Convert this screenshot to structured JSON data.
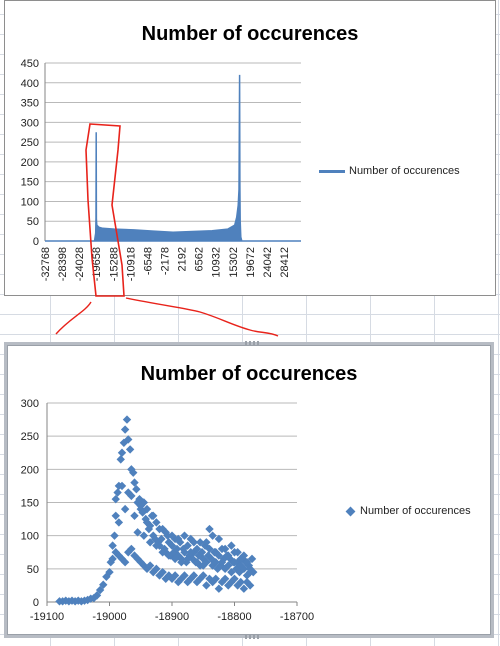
{
  "chart_data": [
    {
      "type": "area",
      "title": "Number of occurences",
      "legend": "Number of occurences",
      "legend_position": "right",
      "ylim": [
        0,
        450
      ],
      "yticks": [
        0,
        50,
        100,
        150,
        200,
        250,
        300,
        350,
        400,
        450
      ],
      "xlim": [
        -32768,
        32767
      ],
      "xticks": [
        -32768,
        -28398,
        -24028,
        -19658,
        -15288,
        -10918,
        -6548,
        -2178,
        2192,
        6562,
        10932,
        15302,
        19672,
        24042,
        28412
      ],
      "series": [
        {
          "name": "Number of occurences",
          "x": [
            -32768,
            -21300,
            -20100,
            -19800,
            -19700,
            -19660,
            -19600,
            -19500,
            -19000,
            -18000,
            -15000,
            -10000,
            -5000,
            0,
            5000,
            10000,
            14000,
            15800,
            16300,
            16700,
            16900,
            17050,
            17120,
            17200,
            17350,
            17600,
            18000,
            32767
          ],
          "y": [
            0,
            0,
            0,
            20,
            60,
            275,
            55,
            40,
            35,
            32,
            30,
            28,
            25,
            22,
            24,
            26,
            30,
            40,
            60,
            90,
            130,
            420,
            140,
            50,
            10,
            0,
            0,
            0
          ]
        }
      ],
      "grid": "horizontal",
      "color": "#4f81bd"
    },
    {
      "type": "scatter",
      "title": "Number of occurences",
      "legend": "Number of occurences",
      "legend_position": "right",
      "xlim": [
        -19100,
        -18700
      ],
      "ylim": [
        0,
        300
      ],
      "xticks": [
        -19100,
        -19000,
        -18900,
        -18800,
        -18700
      ],
      "yticks": [
        0,
        50,
        100,
        150,
        200,
        250,
        300
      ],
      "grid": "horizontal",
      "color": "#4f81bd",
      "series": [
        {
          "name": "Number of occurences",
          "points": [
            [
              -19080,
              1
            ],
            [
              -19075,
              1
            ],
            [
              -19070,
              2
            ],
            [
              -19065,
              1
            ],
            [
              -19060,
              2
            ],
            [
              -19055,
              1
            ],
            [
              -19050,
              2
            ],
            [
              -19045,
              1
            ],
            [
              -19040,
              2
            ],
            [
              -19035,
              3
            ],
            [
              -19030,
              5
            ],
            [
              -19025,
              6
            ],
            [
              -19020,
              10
            ],
            [
              -19015,
              18
            ],
            [
              -19010,
              26
            ],
            [
              -19005,
              38
            ],
            [
              -19000,
              45
            ],
            [
              -18998,
              60
            ],
            [
              -18995,
              85
            ],
            [
              -18992,
              100
            ],
            [
              -18990,
              130
            ],
            [
              -18987,
              165
            ],
            [
              -18985,
              175
            ],
            [
              -18982,
              215
            ],
            [
              -18980,
              225
            ],
            [
              -18977,
              240
            ],
            [
              -18975,
              260
            ],
            [
              -18972,
              275
            ],
            [
              -18970,
              245
            ],
            [
              -18967,
              230
            ],
            [
              -18965,
              200
            ],
            [
              -18962,
              195
            ],
            [
              -18960,
              180
            ],
            [
              -18957,
              170
            ],
            [
              -18955,
              150
            ],
            [
              -18952,
              155
            ],
            [
              -18950,
              140
            ],
            [
              -18947,
              135
            ],
            [
              -18945,
              150
            ],
            [
              -18942,
              125
            ],
            [
              -18940,
              120
            ],
            [
              -18937,
              110
            ],
            [
              -18935,
              115
            ],
            [
              -18932,
              130
            ],
            [
              -18930,
              100
            ],
            [
              -18927,
              95
            ],
            [
              -18925,
              120
            ],
            [
              -18922,
              90
            ],
            [
              -18920,
              85
            ],
            [
              -18917,
              95
            ],
            [
              -18915,
              110
            ],
            [
              -18912,
              80
            ],
            [
              -18910,
              75
            ],
            [
              -18907,
              100
            ],
            [
              -18905,
              90
            ],
            [
              -18902,
              70
            ],
            [
              -18900,
              85
            ],
            [
              -18897,
              75
            ],
            [
              -18895,
              95
            ],
            [
              -18892,
              80
            ],
            [
              -18890,
              70
            ],
            [
              -18887,
              90
            ],
            [
              -18885,
              65
            ],
            [
              -18882,
              80
            ],
            [
              -18880,
              75
            ],
            [
              -18877,
              60
            ],
            [
              -18875,
              85
            ],
            [
              -18872,
              70
            ],
            [
              -18870,
              95
            ],
            [
              -18867,
              65
            ],
            [
              -18865,
              75
            ],
            [
              -18862,
              60
            ],
            [
              -18860,
              80
            ],
            [
              -18857,
              70
            ],
            [
              -18855,
              55
            ],
            [
              -18852,
              75
            ],
            [
              -18850,
              65
            ],
            [
              -18847,
              85
            ],
            [
              -18845,
              60
            ],
            [
              -18842,
              70
            ],
            [
              -18840,
              110
            ],
            [
              -18837,
              65
            ],
            [
              -18835,
              55
            ],
            [
              -18832,
              75
            ],
            [
              -18830,
              60
            ],
            [
              -18827,
              50
            ],
            [
              -18825,
              70
            ],
            [
              -18822,
              55
            ],
            [
              -18820,
              80
            ],
            [
              -18817,
              65
            ],
            [
              -18815,
              50
            ],
            [
              -18812,
              70
            ],
            [
              -18810,
              55
            ],
            [
              -18807,
              65
            ],
            [
              -18805,
              45
            ],
            [
              -18802,
              60
            ],
            [
              -18800,
              75
            ],
            [
              -18797,
              50
            ],
            [
              -18795,
              60
            ],
            [
              -18792,
              45
            ],
            [
              -18790,
              55
            ],
            [
              -18787,
              65
            ],
            [
              -18785,
              50
            ],
            [
              -18782,
              60
            ],
            [
              -18780,
              40
            ],
            [
              -18777,
              55
            ],
            [
              -18775,
              50
            ],
            [
              -18772,
              65
            ],
            [
              -18770,
              45
            ],
            [
              -18990,
              155
            ],
            [
              -18985,
              120
            ],
            [
              -18980,
              175
            ],
            [
              -18975,
              140
            ],
            [
              -18970,
              165
            ],
            [
              -18965,
              160
            ],
            [
              -18960,
              130
            ],
            [
              -18955,
              105
            ],
            [
              -18950,
              145
            ],
            [
              -18945,
              100
            ],
            [
              -18940,
              140
            ],
            [
              -18935,
              90
            ],
            [
              -18930,
              130
            ],
            [
              -18925,
              85
            ],
            [
              -18920,
              110
            ],
            [
              -18915,
              75
            ],
            [
              -18910,
              105
            ],
            [
              -18905,
              70
            ],
            [
              -18900,
              100
            ],
            [
              -18895,
              65
            ],
            [
              -18890,
              95
            ],
            [
              -18885,
              60
            ],
            [
              -18880,
              100
            ],
            [
              -18875,
              65
            ],
            [
              -18870,
              75
            ],
            [
              -18865,
              90
            ],
            [
              -18860,
              60
            ],
            [
              -18855,
              90
            ],
            [
              -18850,
              55
            ],
            [
              -18845,
              90
            ],
            [
              -18840,
              80
            ],
            [
              -18835,
              100
            ],
            [
              -18830,
              75
            ],
            [
              -18825,
              95
            ],
            [
              -18820,
              60
            ],
            [
              -18815,
              80
            ],
            [
              -18810,
              70
            ],
            [
              -18805,
              85
            ],
            [
              -18800,
              60
            ],
            [
              -18795,
              75
            ],
            [
              -18790,
              65
            ],
            [
              -18785,
              70
            ],
            [
              -18780,
              60
            ],
            [
              -18775,
              45
            ],
            [
              -18995,
              65
            ],
            [
              -18990,
              75
            ],
            [
              -18985,
              70
            ],
            [
              -18980,
              65
            ],
            [
              -18975,
              60
            ],
            [
              -18970,
              75
            ],
            [
              -18965,
              80
            ],
            [
              -18960,
              70
            ],
            [
              -18955,
              65
            ],
            [
              -18950,
              60
            ],
            [
              -18945,
              55
            ],
            [
              -18940,
              50
            ],
            [
              -18935,
              55
            ],
            [
              -18930,
              45
            ],
            [
              -18925,
              50
            ],
            [
              -18920,
              40
            ],
            [
              -18915,
              45
            ],
            [
              -18910,
              35
            ],
            [
              -18905,
              40
            ],
            [
              -18900,
              35
            ],
            [
              -18895,
              40
            ],
            [
              -18890,
              30
            ],
            [
              -18885,
              35
            ],
            [
              -18880,
              40
            ],
            [
              -18875,
              30
            ],
            [
              -18870,
              35
            ],
            [
              -18865,
              40
            ],
            [
              -18860,
              30
            ],
            [
              -18855,
              35
            ],
            [
              -18850,
              40
            ],
            [
              -18845,
              25
            ],
            [
              -18840,
              35
            ],
            [
              -18835,
              30
            ],
            [
              -18830,
              35
            ],
            [
              -18825,
              20
            ],
            [
              -18820,
              30
            ],
            [
              -18815,
              35
            ],
            [
              -18810,
              25
            ],
            [
              -18805,
              30
            ],
            [
              -18800,
              35
            ],
            [
              -18795,
              25
            ],
            [
              -18790,
              30
            ],
            [
              -18785,
              20
            ],
            [
              -18780,
              30
            ],
            [
              -18775,
              25
            ]
          ]
        }
      ]
    }
  ]
}
